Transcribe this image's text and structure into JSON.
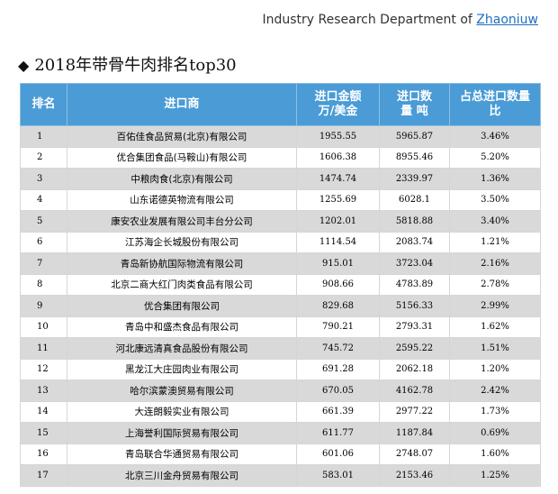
{
  "header": {
    "text": "Industry Research Department of ",
    "link": "Zhaoniuw"
  },
  "title": {
    "diamond": "◆",
    "text": "2018年带骨牛肉排名top30"
  },
  "table": {
    "columns": [
      "排名",
      "进口商",
      "进口金额\n万/美金",
      "进口数\n量 吨",
      "占总进口数量\n比"
    ],
    "rows": [
      [
        "1",
        "百佑佳食品贸易(北京)有限公司",
        "1955.55",
        "5965.87",
        "3.46%"
      ],
      [
        "2",
        "优合集团食品(马鞍山)有限公司",
        "1606.38",
        "8955.46",
        "5.20%"
      ],
      [
        "3",
        "中粮肉食(北京)有限公司",
        "1474.74",
        "2339.97",
        "1.36%"
      ],
      [
        "4",
        "山东诺德英物流有限公司",
        "1255.69",
        "6028.1",
        "3.50%"
      ],
      [
        "5",
        "康安农业发展有限公司丰台分公司",
        "1202.01",
        "5818.88",
        "3.40%"
      ],
      [
        "6",
        "江苏海企长城股份有限公司",
        "1114.54",
        "2083.74",
        "1.21%"
      ],
      [
        "7",
        "青岛新协航国际物流有限公司",
        "915.01",
        "3723.04",
        "2.16%"
      ],
      [
        "8",
        "北京二商大红门肉类食品有限公司",
        "908.66",
        "4783.89",
        "2.78%"
      ],
      [
        "9",
        "优合集团有限公司",
        "829.68",
        "5156.33",
        "2.99%"
      ],
      [
        "10",
        "青岛中和盛杰食品有限公司",
        "790.21",
        "2793.31",
        "1.62%"
      ],
      [
        "11",
        "河北康远清真食品股份有限公司",
        "745.72",
        "2595.22",
        "1.51%"
      ],
      [
        "12",
        "黑龙江大庄园肉业有限公司",
        "691.28",
        "2062.18",
        "1.20%"
      ],
      [
        "13",
        "哈尔滨蒙澳贸易有限公司",
        "670.05",
        "4162.78",
        "2.42%"
      ],
      [
        "14",
        "大连朗毅实业有限公司",
        "661.39",
        "2977.22",
        "1.73%"
      ],
      [
        "15",
        "上海誉利国际贸易有限公司",
        "611.77",
        "1187.84",
        "0.69%"
      ],
      [
        "16",
        "青岛联合华通贸易有限公司",
        "601.06",
        "2748.07",
        "1.60%"
      ],
      [
        "17",
        "北京三川金舟贸易有限公司",
        "583.01",
        "2153.46",
        "1.25%"
      ]
    ]
  }
}
